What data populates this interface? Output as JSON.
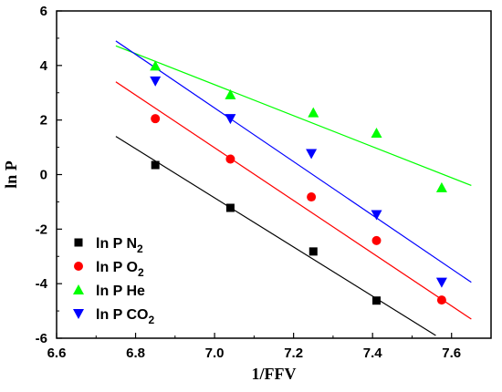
{
  "chart_data": {
    "type": "scatter",
    "xlabel": "1/FFV",
    "ylabel": "ln P",
    "xlim": [
      6.6,
      7.7
    ],
    "ylim": [
      -6,
      6
    ],
    "x_ticks": [
      "6.6",
      "6.8",
      "7.0",
      "7.2",
      "7.4",
      "7.6"
    ],
    "x_tick_values": [
      6.6,
      6.8,
      7.0,
      7.2,
      7.4,
      7.6
    ],
    "y_ticks": [
      "6",
      "4",
      "2",
      "0",
      "-2",
      "-4",
      "-6"
    ],
    "y_tick_values": [
      6,
      4,
      2,
      0,
      -2,
      -4,
      -6
    ],
    "legend_position": "bottom-left",
    "series": [
      {
        "name": "ln P N2",
        "legend_base": "ln P N",
        "legend_sub": "2",
        "marker": "square",
        "color": "#000000",
        "points": [
          [
            6.85,
            0.35
          ],
          [
            7.04,
            -1.22
          ],
          [
            7.25,
            -2.82
          ],
          [
            7.41,
            -4.62
          ]
        ],
        "fit": [
          [
            6.75,
            1.4
          ],
          [
            7.56,
            -5.9
          ]
        ]
      },
      {
        "name": "ln P O2",
        "legend_base": "ln P O",
        "legend_sub": "2",
        "marker": "circle",
        "color": "#ff0000",
        "points": [
          [
            6.85,
            2.05
          ],
          [
            7.04,
            0.57
          ],
          [
            7.245,
            -0.82
          ],
          [
            7.41,
            -2.42
          ],
          [
            7.575,
            -4.6
          ]
        ],
        "fit": [
          [
            6.75,
            3.4
          ],
          [
            7.65,
            -5.3
          ]
        ]
      },
      {
        "name": "ln P He",
        "legend_base": "ln P He",
        "legend_sub": "",
        "marker": "triangle-up",
        "color": "#00ff00",
        "points": [
          [
            6.85,
            3.98
          ],
          [
            7.04,
            2.93
          ],
          [
            7.25,
            2.27
          ],
          [
            7.41,
            1.52
          ],
          [
            7.575,
            -0.48
          ]
        ],
        "fit": [
          [
            6.75,
            4.72
          ],
          [
            7.65,
            -0.4
          ]
        ]
      },
      {
        "name": "ln P CO2",
        "legend_base": "ln P CO",
        "legend_sub": "2",
        "marker": "triangle-down",
        "color": "#0000ff",
        "points": [
          [
            6.85,
            3.43
          ],
          [
            7.04,
            2.05
          ],
          [
            7.245,
            0.77
          ],
          [
            7.41,
            -1.47
          ],
          [
            7.575,
            -3.95
          ]
        ],
        "fit": [
          [
            6.75,
            4.9
          ],
          [
            7.65,
            -3.95
          ]
        ]
      }
    ]
  }
}
